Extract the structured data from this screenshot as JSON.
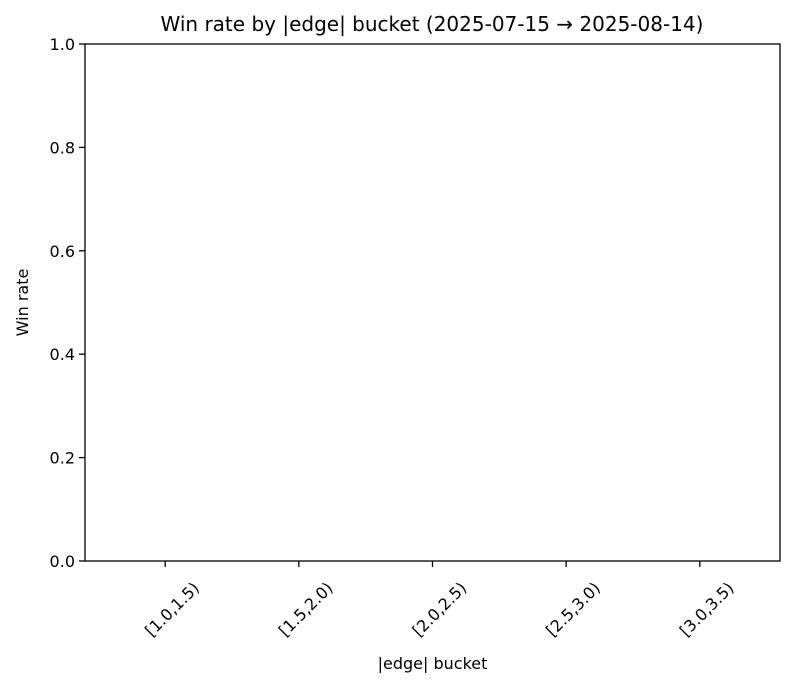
{
  "chart_data": {
    "type": "bar",
    "title": "Win rate by |edge| bucket (2025-07-15 → 2025-08-14)",
    "xlabel": "|edge| bucket",
    "ylabel": "Win rate",
    "categories": [
      "[1.0,1.5)",
      "[1.5,2.0)",
      "[2.0,2.5)",
      "[2.5,3.0)",
      "[3.0,3.5)"
    ],
    "values": [
      null,
      null,
      null,
      null,
      null
    ],
    "ylim": [
      0.0,
      1.0
    ],
    "yticks": [
      "0.0",
      "0.2",
      "0.4",
      "0.6",
      "0.8",
      "1.0"
    ],
    "grid": false,
    "legend": "none"
  }
}
